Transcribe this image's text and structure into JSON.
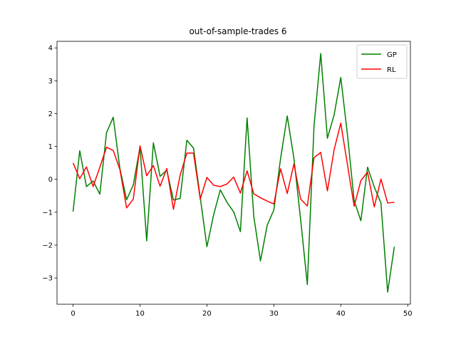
{
  "chart_data": {
    "type": "line",
    "title": "out-of-sample-trades 6",
    "xlabel": "",
    "ylabel": "",
    "xlim": [
      -2.4,
      50.4
    ],
    "ylim": [
      -3.8,
      4.2
    ],
    "xticks": [
      0,
      10,
      20,
      30,
      40,
      50
    ],
    "yticks": [
      -3,
      -2,
      -1,
      0,
      1,
      2,
      3,
      4
    ],
    "grid": false,
    "legend": "top-right",
    "series": [
      {
        "name": "GP",
        "color": "#008000",
        "x": [
          0,
          1,
          2,
          3,
          4,
          5,
          6,
          7,
          8,
          9,
          10,
          11,
          12,
          13,
          14,
          15,
          16,
          17,
          18,
          19,
          20,
          21,
          22,
          23,
          24,
          25,
          26,
          27,
          28,
          29,
          30,
          31,
          32,
          33,
          34,
          35,
          36,
          37,
          38,
          39,
          40,
          41,
          42,
          43,
          44,
          45,
          46,
          47,
          48
        ],
        "values": [
          -0.98,
          0.87,
          -0.22,
          -0.05,
          -0.45,
          1.42,
          1.89,
          0.33,
          -0.62,
          -0.17,
          0.98,
          -1.87,
          1.11,
          0.09,
          0.28,
          -0.63,
          -0.58,
          1.19,
          0.95,
          -0.55,
          -2.05,
          -1.08,
          -0.32,
          -0.7,
          -0.99,
          -1.59,
          1.87,
          -1.13,
          -2.48,
          -1.4,
          -0.93,
          0.63,
          1.93,
          0.63,
          -1.22,
          -3.2,
          1.62,
          3.83,
          1.25,
          1.96,
          3.1,
          1.35,
          -0.65,
          -1.26,
          0.37,
          -0.23,
          -0.72,
          -3.43,
          -2.05
        ]
      },
      {
        "name": "RL",
        "color": "#ff0000",
        "x": [
          0,
          1,
          2,
          3,
          4,
          5,
          6,
          7,
          8,
          9,
          10,
          11,
          12,
          13,
          14,
          15,
          16,
          17,
          18,
          19,
          20,
          21,
          22,
          23,
          24,
          25,
          26,
          27,
          28,
          29,
          30,
          31,
          32,
          33,
          34,
          35,
          36,
          37,
          38,
          39,
          40,
          41,
          42,
          43,
          44,
          45,
          46,
          47,
          48
        ],
        "values": [
          0.5,
          0.02,
          0.38,
          -0.22,
          0.37,
          0.98,
          0.88,
          0.3,
          -0.87,
          -0.6,
          1.02,
          0.11,
          0.42,
          -0.21,
          0.33,
          -0.91,
          0.13,
          0.8,
          0.8,
          -0.6,
          0.06,
          -0.18,
          -0.22,
          -0.14,
          0.07,
          -0.42,
          0.26,
          -0.44,
          -0.56,
          -0.66,
          -0.75,
          0.32,
          -0.43,
          0.47,
          -0.6,
          -0.81,
          0.66,
          0.82,
          -0.35,
          0.9,
          1.71,
          0.44,
          -0.82,
          -0.04,
          0.22,
          -0.84,
          0.01,
          -0.72,
          -0.7
        ]
      }
    ]
  }
}
